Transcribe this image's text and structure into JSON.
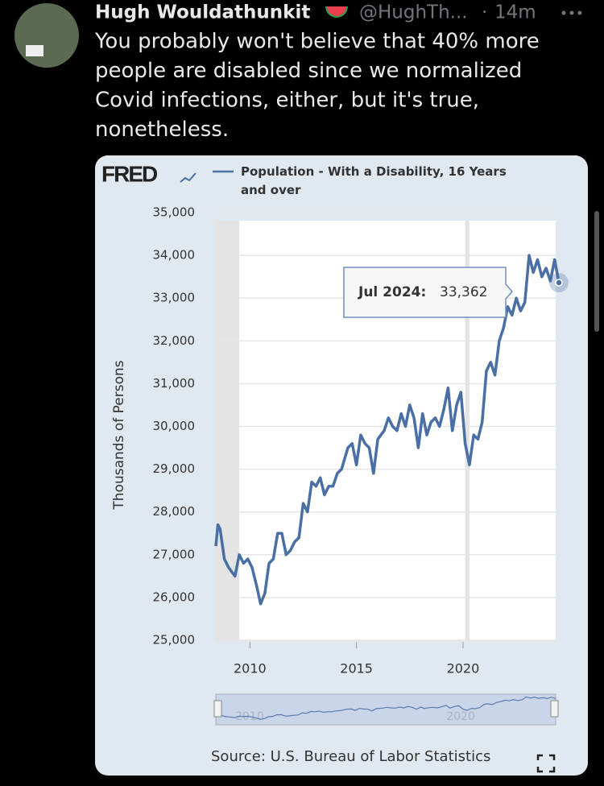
{
  "tweet": {
    "name": "Hugh Wouldathunkit",
    "handle": "@HughTh...",
    "separator": "·",
    "time": "14m",
    "text_lines": [
      "You probably won't believe that 40% more",
      "people are disabled since we normalized",
      "Covid infections, either, but it's true,",
      "nonetheless."
    ]
  },
  "chart_data": {
    "type": "line",
    "logo": "FRED",
    "series": [
      {
        "name": "Population - With a Disability, 16 Years and over",
        "color": "#4a6fa5",
        "x": [
          2008.4,
          2008.5,
          2008.6,
          2008.8,
          2009.0,
          2009.3,
          2009.5,
          2009.7,
          2009.9,
          2010.1,
          2010.3,
          2010.5,
          2010.7,
          2010.9,
          2011.1,
          2011.3,
          2011.5,
          2011.7,
          2011.9,
          2012.1,
          2012.3,
          2012.5,
          2012.7,
          2012.9,
          2013.1,
          2013.3,
          2013.5,
          2013.7,
          2013.9,
          2014.1,
          2014.3,
          2014.6,
          2014.8,
          2015.0,
          2015.2,
          2015.4,
          2015.6,
          2015.8,
          2016.0,
          2016.3,
          2016.5,
          2016.7,
          2016.9,
          2017.1,
          2017.3,
          2017.5,
          2017.7,
          2017.9,
          2018.1,
          2018.3,
          2018.5,
          2018.7,
          2018.9,
          2019.1,
          2019.3,
          2019.5,
          2019.7,
          2019.9,
          2020.1,
          2020.3,
          2020.5,
          2020.7,
          2020.9,
          2021.1,
          2021.3,
          2021.5,
          2021.7,
          2021.9,
          2022.1,
          2022.3,
          2022.5,
          2022.7,
          2022.9,
          2023.1,
          2023.3,
          2023.5,
          2023.7,
          2023.9,
          2024.1,
          2024.3,
          2024.5
        ],
        "values": [
          27200,
          27700,
          27600,
          26900,
          26700,
          26500,
          27000,
          26800,
          26900,
          26700,
          26300,
          25850,
          26100,
          26800,
          26900,
          27500,
          27500,
          27000,
          27100,
          27300,
          27400,
          28200,
          28000,
          28700,
          28600,
          28800,
          28400,
          28600,
          28600,
          28900,
          29000,
          29500,
          29600,
          29100,
          29800,
          29600,
          29500,
          28900,
          29700,
          29900,
          30200,
          30000,
          29900,
          30300,
          30000,
          30500,
          30200,
          29500,
          30300,
          29800,
          30100,
          30200,
          30000,
          30400,
          30900,
          29900,
          30500,
          30800,
          29600,
          29100,
          29800,
          29700,
          30100,
          31300,
          31500,
          31200,
          32000,
          32300,
          32800,
          32600,
          33000,
          32700,
          32900,
          34000,
          33600,
          33900,
          33500,
          33700,
          33400,
          33900,
          33362
        ]
      }
    ],
    "y_label": "Thousands of Persons",
    "xlim": [
      2008.4,
      2024.5
    ],
    "xticks": [
      2010,
      2015,
      2020
    ],
    "ylim": [
      25000,
      35000
    ],
    "yticks": [
      {
        "value": 25000,
        "label": "25,000"
      },
      {
        "value": 26000,
        "label": "26,000"
      },
      {
        "value": 27000,
        "label": "27,000"
      },
      {
        "value": 28000,
        "label": "28,000"
      },
      {
        "value": 29000,
        "label": "29,000"
      },
      {
        "value": 30000,
        "label": "30,000"
      },
      {
        "value": 31000,
        "label": "31,000"
      },
      {
        "value": 32000,
        "label": "32,000"
      },
      {
        "value": 33000,
        "label": "33,000"
      },
      {
        "value": 34000,
        "label": "34,000"
      },
      {
        "value": 35000,
        "label": "35,000"
      }
    ],
    "grid": true,
    "recessions": [
      [
        2008.4,
        2009.5
      ],
      [
        2020.1,
        2020.3
      ]
    ],
    "tooltip": {
      "date": "Jul 2024:",
      "text": "33,362"
    },
    "source": "Source: U.S. Bureau of Labor Statistics"
  }
}
